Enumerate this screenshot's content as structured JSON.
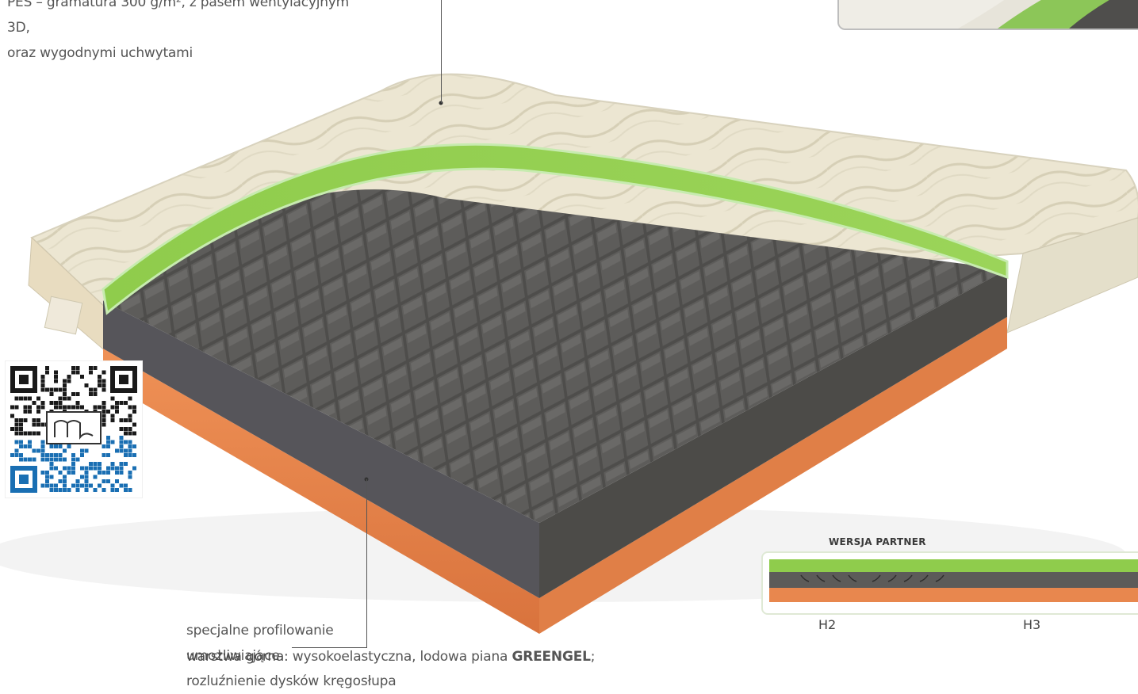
{
  "cover_text": {
    "line1": "PES – gramatura 300 g/m², z pasem wentylacyjnym 3D,",
    "line2": "oraz wygodnymi uchwytami"
  },
  "profile_text": {
    "line1": "specjalne profilowanie umożliwiające",
    "line2": "rozluźnienie dysków kręgosłupa"
  },
  "layer_text": {
    "label": "warstwa górna:",
    "desc": " wysokoelastyczna, lodowa piana ",
    "material": "GREENGEL",
    "end": ";"
  },
  "partner": {
    "title": "WERSJA PARTNER",
    "left_firmness": "H2",
    "right_firmness": "H3"
  },
  "colors": {
    "green_layer": "#8fcc4c",
    "grey_foam": "#5b5a58",
    "orange_layer": "#e8874e",
    "cover": "#ece6d2"
  },
  "icons": {
    "qr": "qr-code-icon",
    "logo": "brand-logo-icon"
  }
}
